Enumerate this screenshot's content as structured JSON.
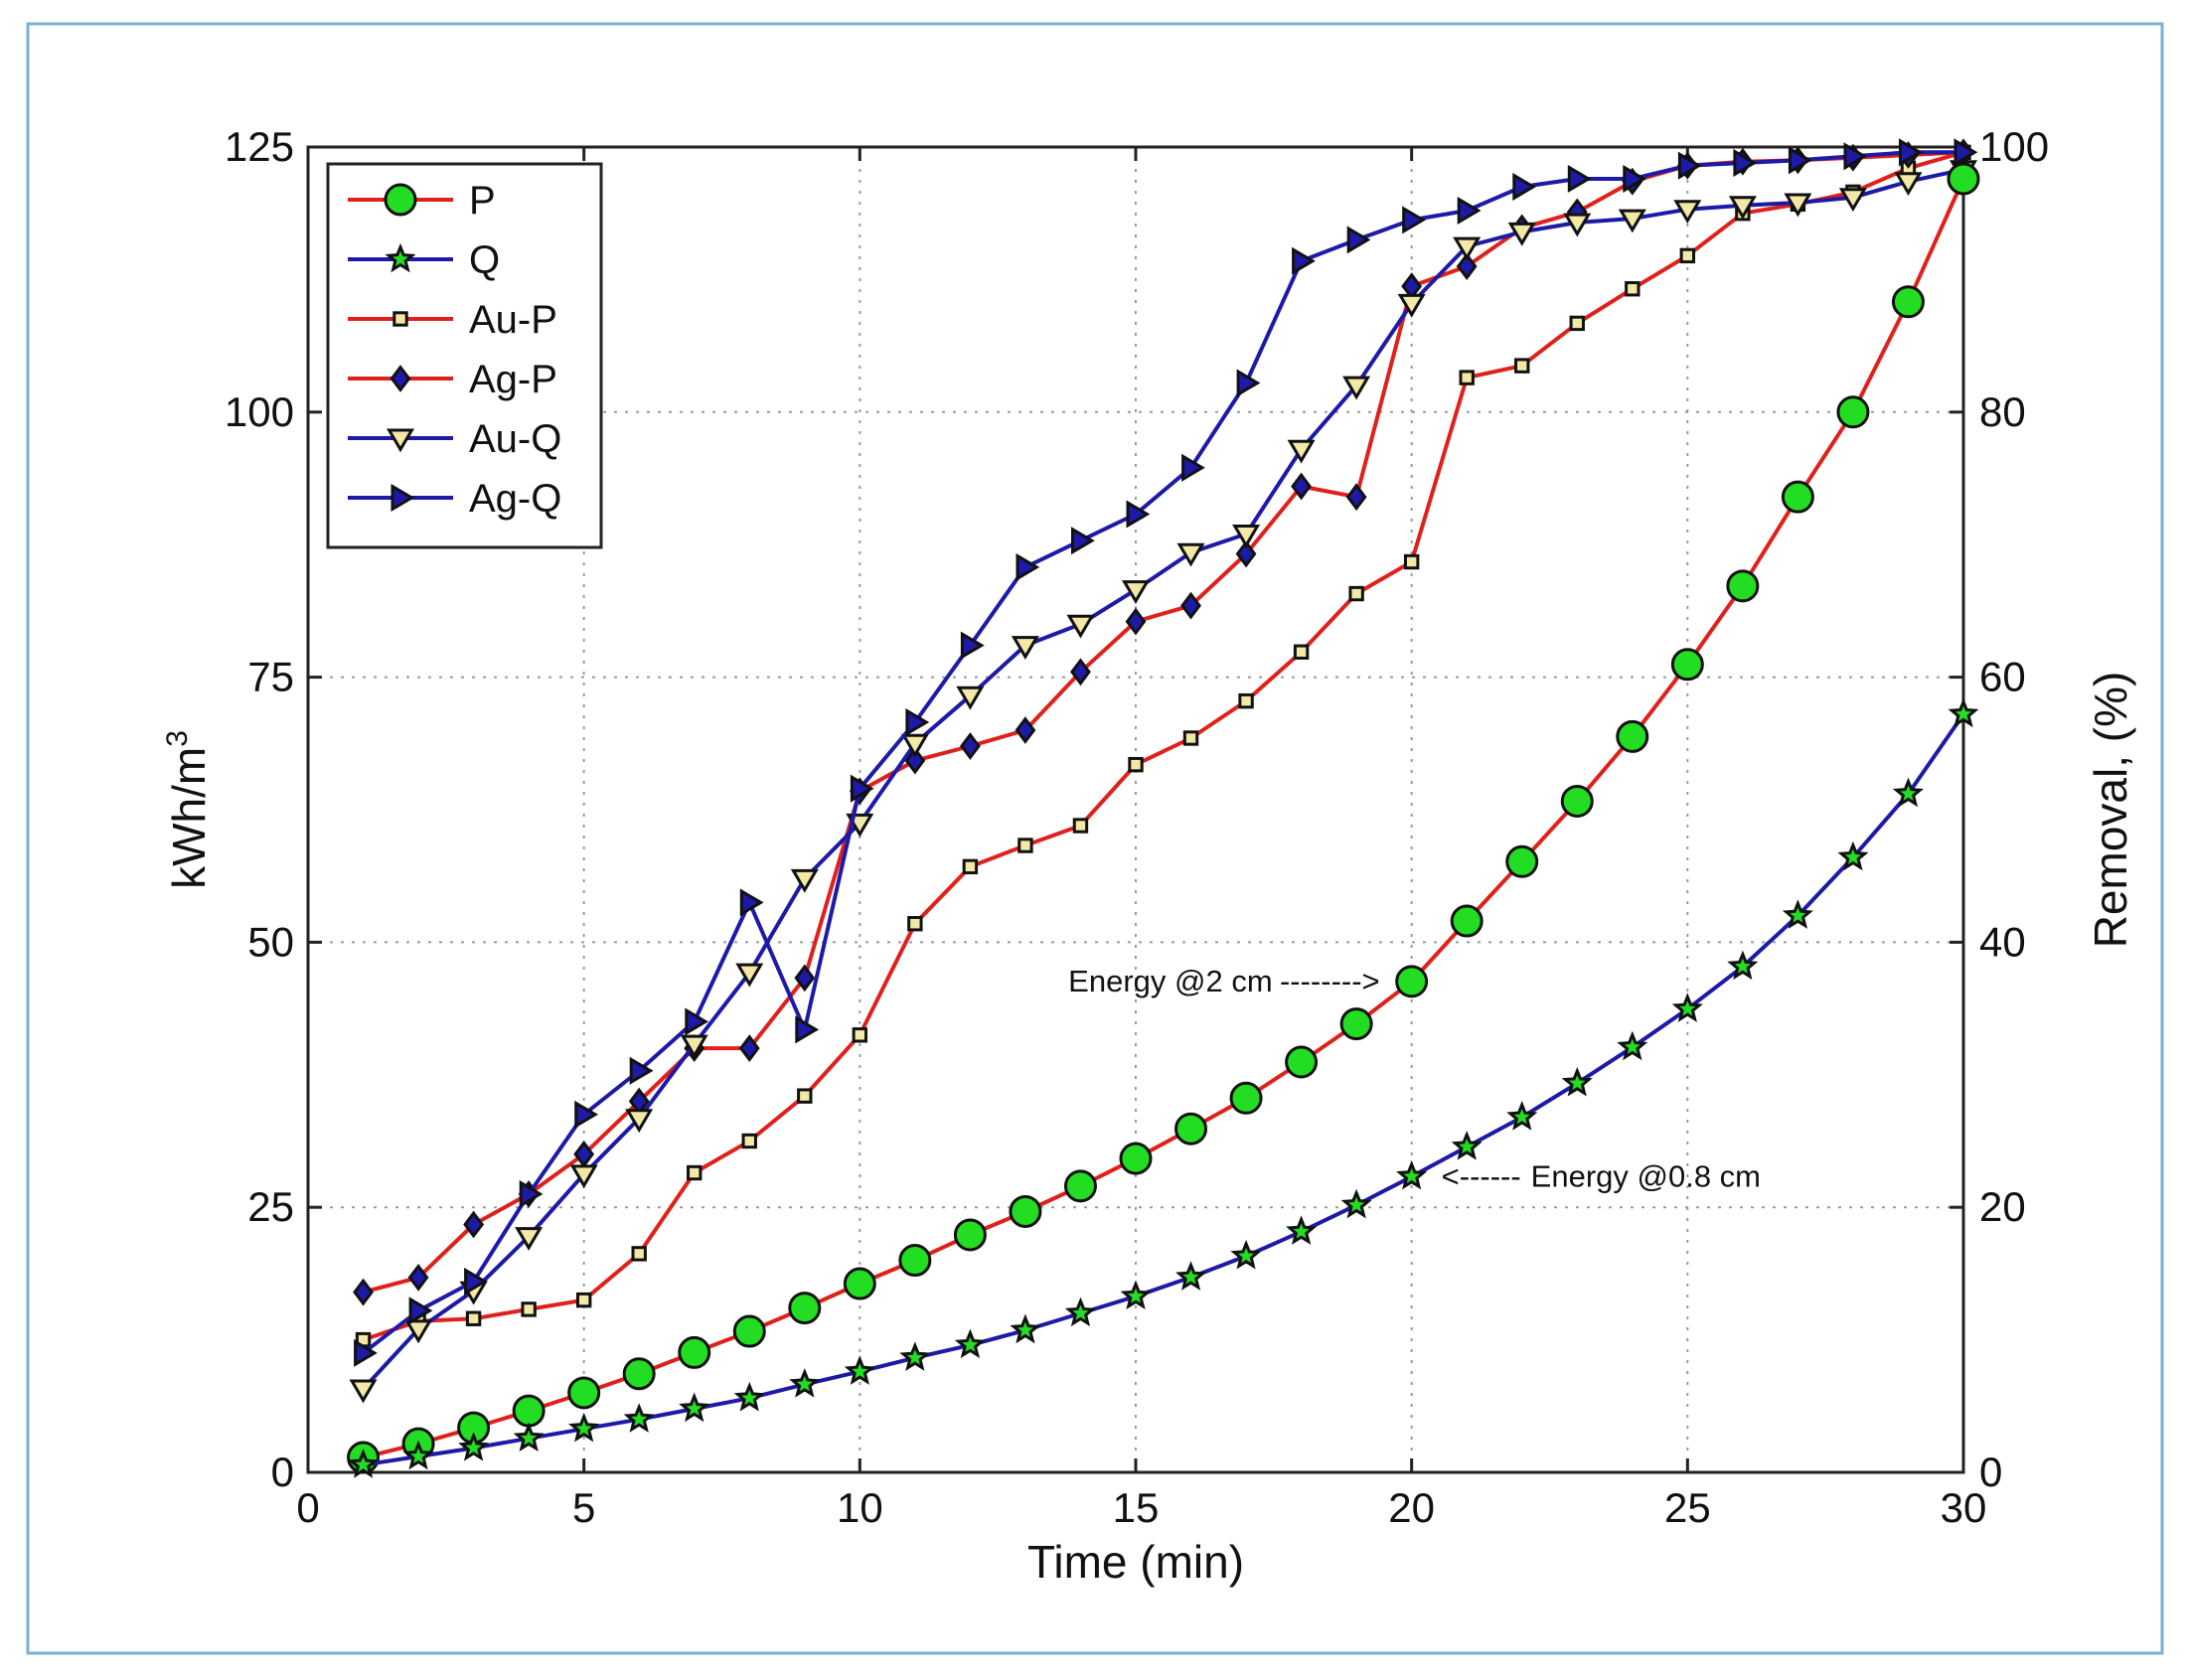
{
  "chart_data": {
    "type": "line",
    "title": "",
    "xlabel": "Time (min)",
    "ylabel": "kWh/m",
    "ylabel_superscript": "3",
    "y2label": "Removal, (%)",
    "xlim": [
      0,
      30
    ],
    "ylim": [
      0,
      125
    ],
    "y2lim": [
      0,
      100
    ],
    "x_ticks": [
      0,
      5,
      10,
      15,
      20,
      25,
      30
    ],
    "y_ticks": [
      0,
      25,
      50,
      75,
      100,
      125
    ],
    "y2_ticks": [
      0,
      20,
      40,
      60,
      80,
      100
    ],
    "grid": true,
    "legend_position": "top-left",
    "x": [
      1,
      2,
      3,
      4,
      5,
      6,
      7,
      8,
      9,
      10,
      11,
      12,
      13,
      14,
      15,
      16,
      17,
      18,
      19,
      20,
      21,
      22,
      23,
      24,
      25,
      26,
      27,
      28,
      29,
      30
    ],
    "series": [
      {
        "name": "P",
        "axis": "left",
        "line_color": "#e0201b",
        "marker": "circle",
        "marker_fill": "#22dd22",
        "values": [
          1.4,
          2.7,
          4.2,
          5.8,
          7.5,
          9.3,
          11.3,
          13.3,
          15.5,
          17.8,
          20.0,
          22.4,
          24.6,
          27.0,
          29.6,
          32.4,
          35.3,
          38.7,
          42.3,
          46.3,
          52.0,
          57.6,
          63.3,
          69.4,
          76.2,
          83.6,
          92.0,
          100.0,
          110.4,
          122.0
        ]
      },
      {
        "name": "Q",
        "axis": "left",
        "line_color": "#1d1aa8",
        "marker": "star",
        "marker_fill": "#22dd22",
        "values": [
          0.7,
          1.5,
          2.3,
          3.2,
          4.1,
          5.0,
          6.0,
          7.0,
          8.3,
          9.5,
          10.8,
          12.0,
          13.4,
          15.0,
          16.6,
          18.4,
          20.4,
          22.7,
          25.2,
          27.9,
          30.7,
          33.5,
          36.7,
          40.1,
          43.7,
          47.7,
          52.5,
          58.0,
          64.0,
          71.5
        ]
      },
      {
        "name": "Au-P",
        "axis": "right",
        "line_color": "#e0201b",
        "marker": "square",
        "marker_fill": "#f3e8a6",
        "values": [
          10.0,
          11.4,
          11.6,
          12.3,
          13.0,
          16.5,
          22.6,
          25.0,
          28.4,
          33.0,
          41.4,
          45.7,
          47.3,
          48.8,
          53.4,
          55.4,
          58.2,
          61.9,
          66.3,
          68.7,
          82.6,
          83.5,
          86.7,
          89.3,
          91.8,
          95.0,
          95.7,
          96.6,
          98.4,
          99.6
        ]
      },
      {
        "name": "Ag-P",
        "axis": "right",
        "line_color": "#e0201b",
        "marker": "diamond",
        "marker_fill": "#1d1aa8",
        "values": [
          13.6,
          14.7,
          18.7,
          21.0,
          24.0,
          28.0,
          32.0,
          32.0,
          37.3,
          51.4,
          53.7,
          54.8,
          56.0,
          60.4,
          64.2,
          65.4,
          69.3,
          74.4,
          73.6,
          89.5,
          91.0,
          93.9,
          95.1,
          97.4,
          98.6,
          98.9,
          99.0,
          99.2,
          99.4,
          99.6
        ]
      },
      {
        "name": "Au-Q",
        "axis": "right",
        "line_color": "#1d1aa8",
        "marker": "triangle-down",
        "marker_fill": "#f3e8a6",
        "values": [
          6.3,
          10.8,
          13.7,
          17.8,
          22.5,
          26.7,
          32.3,
          37.7,
          44.8,
          49.0,
          55.0,
          58.6,
          62.4,
          64.0,
          66.6,
          69.4,
          70.8,
          77.2,
          82.0,
          88.2,
          92.5,
          93.6,
          94.3,
          94.6,
          95.3,
          95.6,
          95.8,
          96.2,
          97.4,
          98.3
        ]
      },
      {
        "name": "Ag-Q",
        "axis": "right",
        "line_color": "#1d1aa8",
        "marker": "triangle-right",
        "marker_fill": "#1d1aa8",
        "values": [
          9.0,
          12.2,
          14.4,
          21.0,
          27.0,
          30.3,
          34.0,
          43.0,
          33.4,
          51.6,
          56.6,
          62.4,
          68.3,
          70.3,
          72.3,
          75.8,
          82.2,
          91.4,
          93.0,
          94.5,
          95.2,
          97.0,
          97.6,
          97.6,
          98.6,
          98.8,
          99.0,
          99.3,
          99.6,
          99.6
        ]
      }
    ],
    "annotations": [
      {
        "text": "Energy @2 cm",
        "arrow": "-------->",
        "points_to": {
          "x": 20,
          "y": 46.3
        }
      },
      {
        "text": "Energy @0.8 cm",
        "arrow": "<------",
        "points_to": {
          "x": 20,
          "y": 27.9
        }
      }
    ]
  },
  "colors": {
    "frame_border": "#7ab0d4",
    "axis": "#222222",
    "grid": "#9a9a9a",
    "red_line": "#e0201b",
    "blue_line": "#1d1aa8",
    "green_fill": "#22dd22",
    "cream_fill": "#f3e8a6"
  }
}
